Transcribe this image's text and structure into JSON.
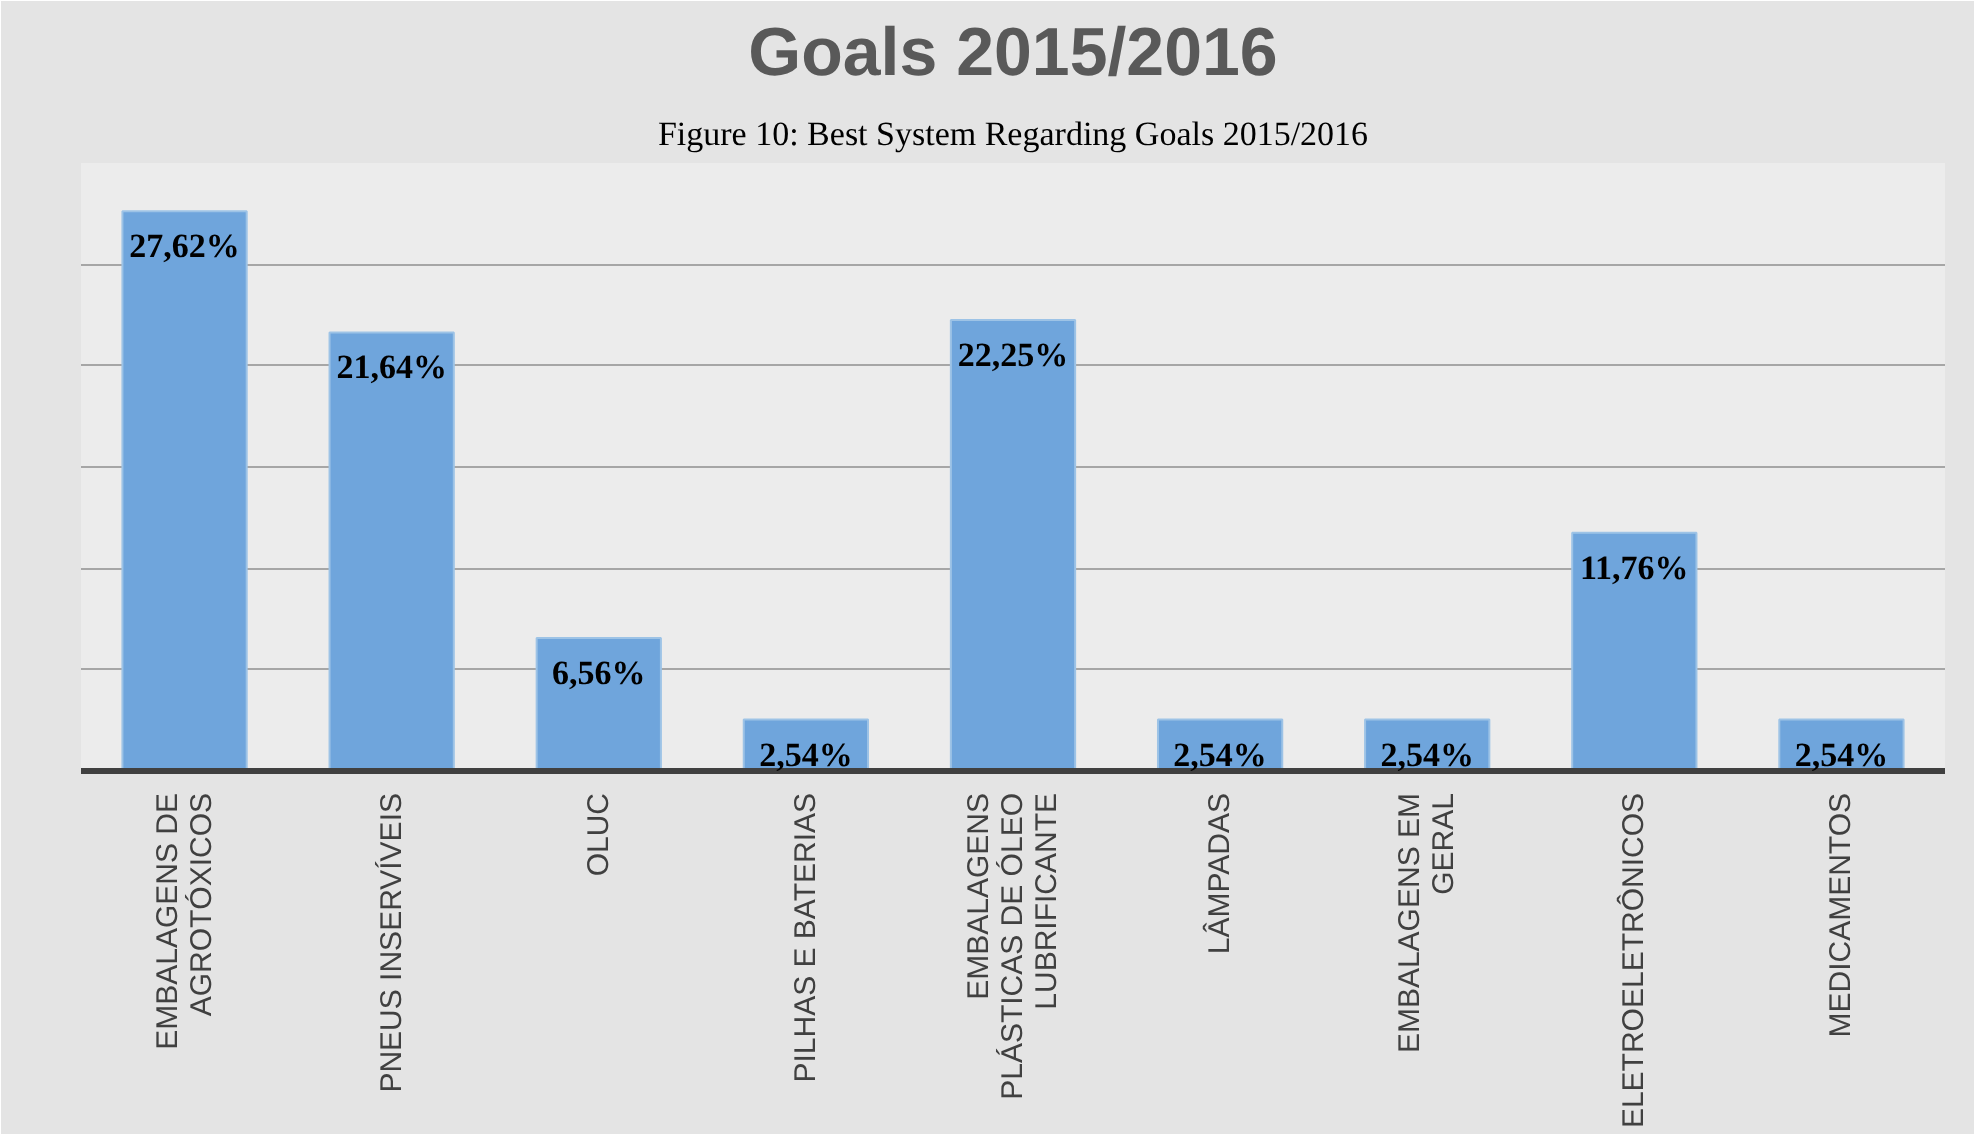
{
  "chart_data": {
    "type": "bar",
    "title": "Goals 2015/2016",
    "annotations": [
      "Figure 10: Best System Regarding Goals 2015/2016"
    ],
    "categories": [
      "EMBALAGENS DE\nAGROTÓXICOS",
      "PNEUS INSERVÍVEIS",
      "OLUC",
      "PILHAS E BATERIAS",
      "EMBALAGENS\nPLÁSTICAS DE ÓLEO\nLUBRIFICANTE",
      "LÂMPADAS",
      "EMBALAGENS EM\nGERAL",
      "ELETROELETRÔNICOS",
      "MEDICAMENTOS"
    ],
    "values": [
      27.62,
      21.64,
      6.56,
      2.54,
      22.25,
      2.54,
      2.54,
      11.76,
      2.54
    ],
    "value_labels": [
      "27,62%",
      "21,64%",
      "6,56%",
      "2,54%",
      "22,25%",
      "2,54%",
      "2,54%",
      "11,76%",
      "2,54%"
    ],
    "color": "#6fa5dc",
    "ylim": [
      0,
      30
    ],
    "yticks": [
      {
        "value": 0,
        "label": null
      },
      {
        "value": 5,
        "label": null
      },
      {
        "value": 10,
        "label": null
      },
      {
        "value": 15,
        "label": null
      },
      {
        "value": 20,
        "label": null
      },
      {
        "value": 25,
        "label": null
      }
    ],
    "grid": "y",
    "tick_labels": "x"
  }
}
